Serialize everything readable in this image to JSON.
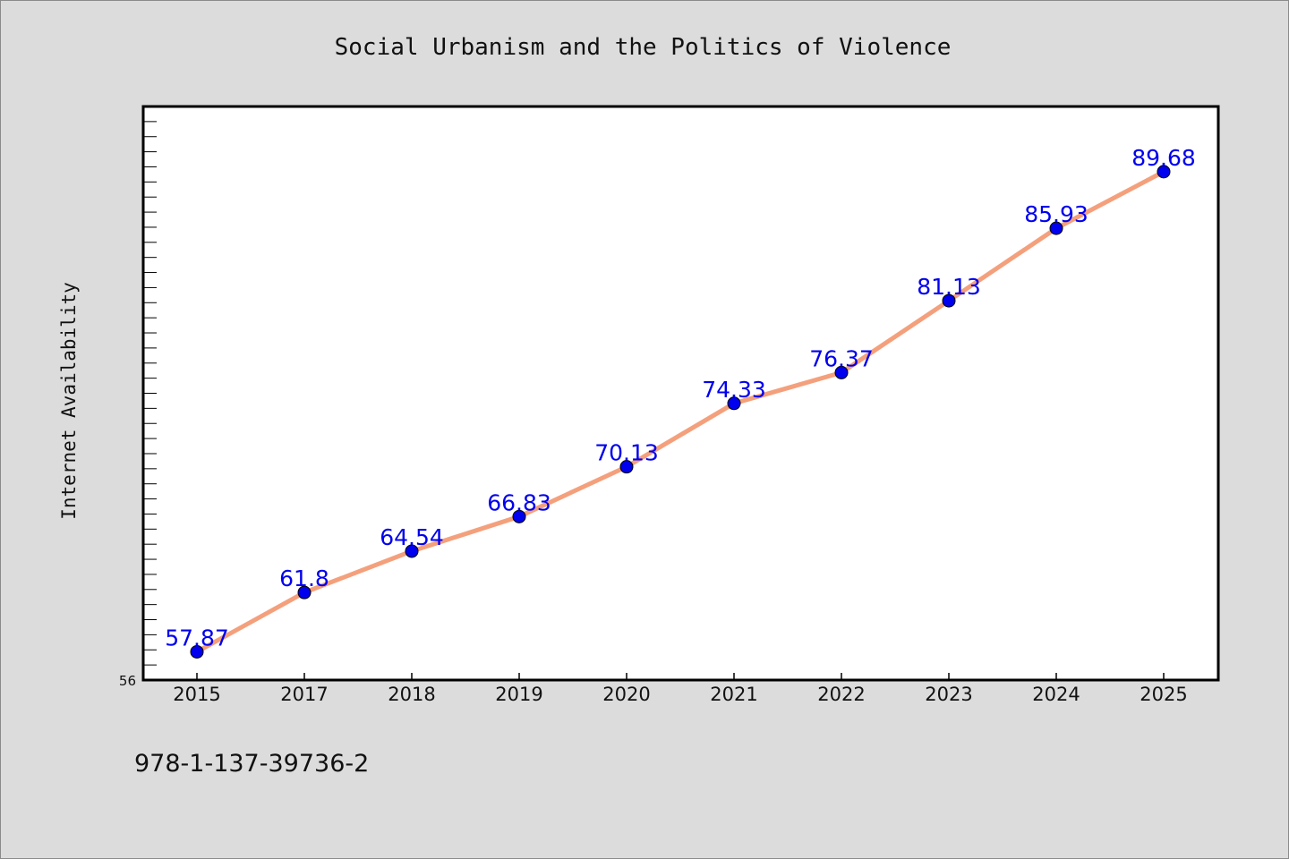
{
  "chart_data": {
    "type": "line",
    "title": "Social Urbanism and the Politics of Violence",
    "xlabel": "",
    "ylabel": "Internet Availability",
    "categories": [
      "2015",
      "2017",
      "2018",
      "2019",
      "2020",
      "2021",
      "2022",
      "2023",
      "2024",
      "2025"
    ],
    "series": [
      {
        "values": [
          57.87,
          61.8,
          64.54,
          66.83,
          70.13,
          74.33,
          76.37,
          81.13,
          85.93,
          89.68
        ]
      }
    ],
    "data_labels": [
      "57.87",
      "61.8",
      "64.54",
      "66.83",
      "70.13",
      "74.33",
      "76.37",
      "81.13",
      "85.93",
      "89.68"
    ],
    "y_axis_min_label": "56",
    "ylim": [
      56,
      94
    ],
    "grid": false,
    "legend": "none",
    "colors": {
      "line": "#f4a07c",
      "marker": "#0000ee",
      "label": "#0000ee",
      "plot_background": "#ffffff",
      "page_background": "#dcdcdc"
    }
  },
  "footer": {
    "isbn": "978-1-137-39736-2"
  }
}
